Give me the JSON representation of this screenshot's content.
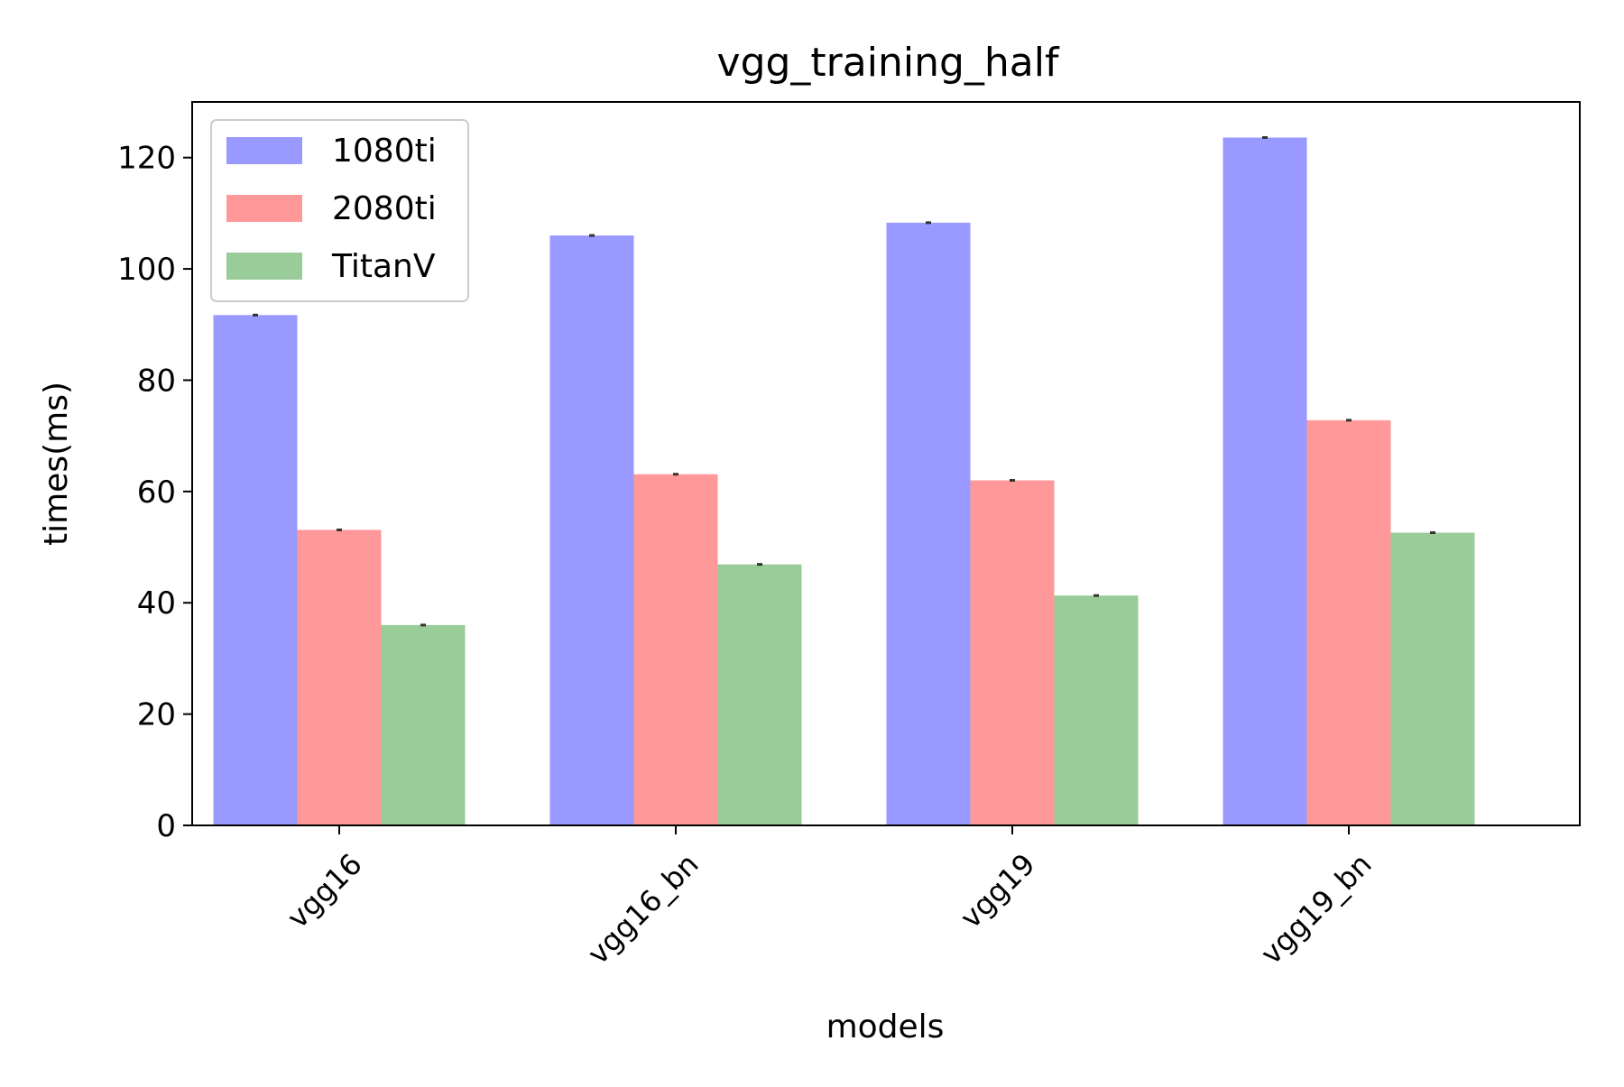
{
  "chart_data": {
    "type": "bar",
    "title": "vgg_training_half",
    "xlabel": "models",
    "ylabel": "times(ms)",
    "categories": [
      "vgg16",
      "vgg16_bn",
      "vgg19",
      "vgg19_bn"
    ],
    "ylim": [
      0,
      130
    ],
    "yticks": [
      0,
      20,
      40,
      60,
      80,
      100,
      120
    ],
    "grid": false,
    "legend_position": "top-left",
    "series": [
      {
        "name": "1080ti",
        "color": "#9999ff",
        "values": [
          91.7,
          106.0,
          108.3,
          123.6
        ]
      },
      {
        "name": "2080ti",
        "color": "#ff9999",
        "values": [
          53.1,
          63.1,
          62.0,
          72.8
        ]
      },
      {
        "name": "TitanV",
        "color": "#99cc99",
        "values": [
          36.0,
          46.9,
          41.3,
          52.6
        ]
      }
    ]
  }
}
